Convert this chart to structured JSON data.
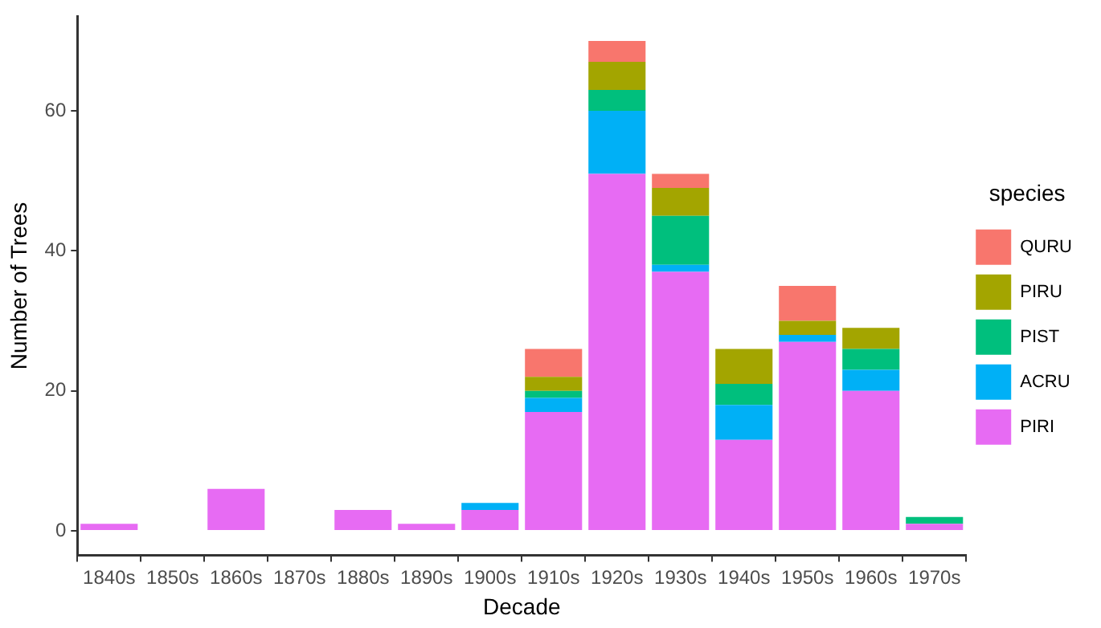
{
  "chart_data": {
    "type": "bar",
    "stacked": true,
    "xlabel": "Decade",
    "ylabel": "Number of Trees",
    "legend_title": "species",
    "legend": "right",
    "grid": false,
    "categories": [
      "1840s",
      "1850s",
      "1860s",
      "1870s",
      "1880s",
      "1890s",
      "1900s",
      "1910s",
      "1920s",
      "1930s",
      "1940s",
      "1950s",
      "1960s",
      "1970s"
    ],
    "ylim": [
      -3.5,
      73.5
    ],
    "yticks": [
      0,
      20,
      40,
      60
    ],
    "series": [
      {
        "name": "PIRI",
        "color": "#e76bf3",
        "values": [
          1,
          0,
          6,
          0,
          3,
          1,
          3,
          17,
          51,
          37,
          13,
          27,
          20,
          1
        ]
      },
      {
        "name": "ACRU",
        "color": "#00b0f6",
        "values": [
          0,
          0,
          0,
          0,
          0,
          0,
          1,
          2,
          9,
          1,
          5,
          1,
          3,
          0
        ]
      },
      {
        "name": "PIST",
        "color": "#00bf7d",
        "values": [
          0,
          0,
          0,
          0,
          0,
          0,
          0,
          1,
          3,
          7,
          3,
          0,
          3,
          1
        ]
      },
      {
        "name": "PIRU",
        "color": "#a3a500",
        "values": [
          0,
          0,
          0,
          0,
          0,
          0,
          0,
          2,
          4,
          4,
          5,
          2,
          3,
          0
        ]
      },
      {
        "name": "QURU",
        "color": "#f8766d",
        "values": [
          0,
          0,
          0,
          0,
          0,
          0,
          0,
          4,
          3,
          2,
          0,
          5,
          0,
          0
        ]
      }
    ]
  }
}
